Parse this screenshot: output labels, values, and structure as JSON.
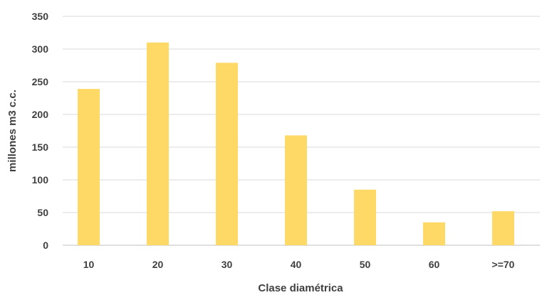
{
  "chart_data": {
    "type": "bar",
    "categories": [
      "10",
      "20",
      "30",
      "40",
      "50",
      "60",
      ">=70"
    ],
    "values": [
      239,
      310,
      279,
      168,
      85,
      35,
      52
    ],
    "xlabel": "Clase diamétrica",
    "ylabel": "millones m3 c.c.",
    "ylim": [
      0,
      350
    ],
    "yticks": [
      0,
      50,
      100,
      150,
      200,
      250,
      300,
      350
    ],
    "grid": true,
    "legend": "none",
    "colors": {
      "bar": "#FFD966"
    }
  }
}
